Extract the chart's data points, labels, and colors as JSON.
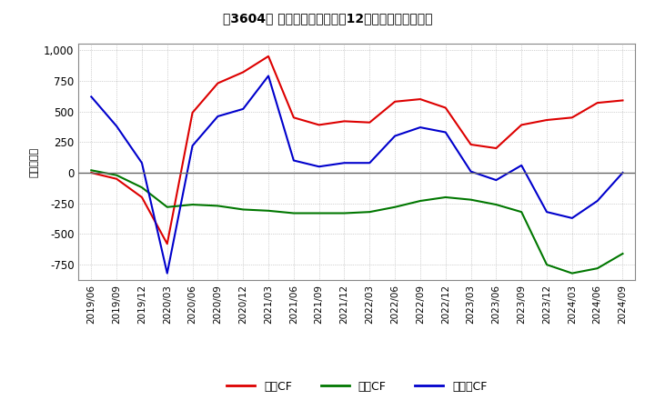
{
  "title": "[　3604　] キャッシュフローの12か月移動合計の推移",
  "title_raw": "【3604】 キャッシュフローの12か月移動合計の推移",
  "ylabel": "（百万円）",
  "ylim": [
    -875,
    1050
  ],
  "yticks": [
    -750,
    -500,
    -250,
    0,
    250,
    500,
    750,
    1000
  ],
  "x_labels": [
    "2019/06",
    "2019/09",
    "2019/12",
    "2020/03",
    "2020/06",
    "2020/09",
    "2020/12",
    "2021/03",
    "2021/06",
    "2021/09",
    "2021/12",
    "2022/03",
    "2022/06",
    "2022/09",
    "2022/12",
    "2023/03",
    "2023/06",
    "2023/09",
    "2023/12",
    "2024/03",
    "2024/06",
    "2024/09"
  ],
  "operating_cf": [
    0,
    -50,
    -200,
    -580,
    490,
    730,
    820,
    950,
    450,
    390,
    420,
    410,
    580,
    600,
    530,
    230,
    200,
    390,
    430,
    450,
    570,
    590
  ],
  "investing_cf": [
    20,
    -20,
    -120,
    -280,
    -260,
    -270,
    -300,
    -310,
    -330,
    -330,
    -330,
    -320,
    -280,
    -230,
    -200,
    -220,
    -260,
    -320,
    -750,
    -820,
    -780,
    -660
  ],
  "free_cf": [
    620,
    380,
    80,
    -820,
    220,
    460,
    520,
    790,
    100,
    50,
    80,
    80,
    300,
    370,
    330,
    10,
    -60,
    60,
    -320,
    -370,
    -230,
    0
  ],
  "color_operating": "#dd0000",
  "color_investing": "#007700",
  "color_free": "#0000cc",
  "legend_labels": [
    "営業CF",
    "投資CF",
    "フリーCF"
  ],
  "background_color": "#ffffff",
  "grid_color": "#aaaaaa",
  "plot_bg_color": "#ffffff"
}
